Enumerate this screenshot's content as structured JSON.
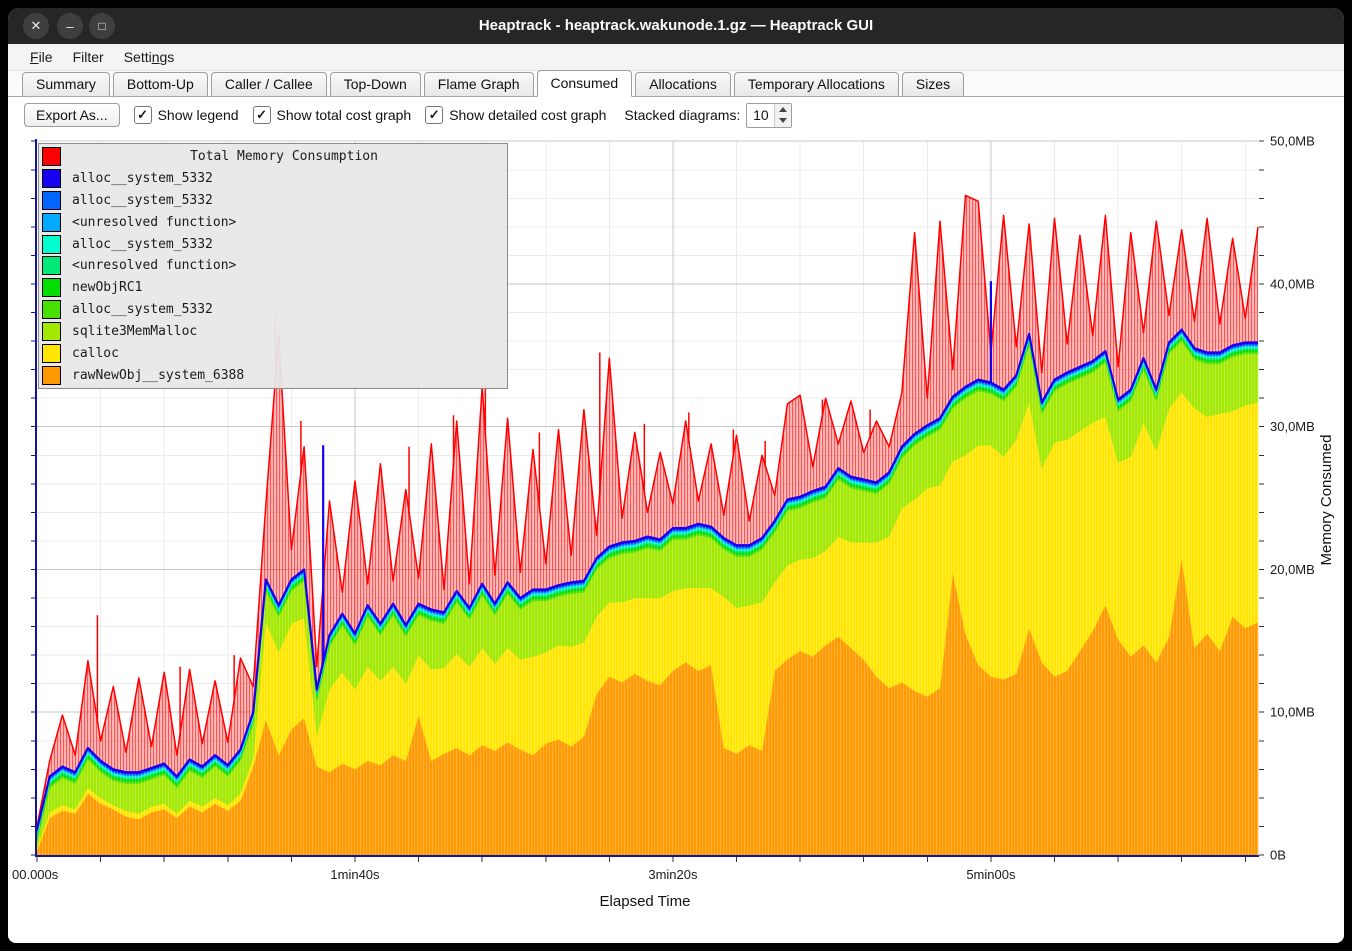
{
  "window": {
    "title": "Heaptrack - heaptrack.wakunode.1.gz — Heaptrack GUI",
    "controls": {
      "close_icon": "✕",
      "minimize_icon": "–",
      "maximize_icon": "□"
    }
  },
  "menu": {
    "file": {
      "pre": "",
      "key": "F",
      "post": "ile"
    },
    "filter": {
      "label": "Filter"
    },
    "settings": {
      "pre": "Setti",
      "key": "n",
      "post": "gs"
    }
  },
  "tabs": [
    {
      "label": "Summary",
      "active": false
    },
    {
      "label": "Bottom-Up",
      "active": false
    },
    {
      "label": "Caller / Callee",
      "active": false
    },
    {
      "label": "Top-Down",
      "active": false
    },
    {
      "label": "Flame Graph",
      "active": false
    },
    {
      "label": "Consumed",
      "active": true
    },
    {
      "label": "Allocations",
      "active": false
    },
    {
      "label": "Temporary Allocations",
      "active": false
    },
    {
      "label": "Sizes",
      "active": false
    }
  ],
  "toolbar": {
    "export_label": "Export As...",
    "check_glyph": "✓",
    "checkboxes": [
      {
        "label": "Show legend",
        "checked": true
      },
      {
        "label": "Show total cost graph",
        "checked": true
      },
      {
        "label": "Show detailed cost graph",
        "checked": true
      }
    ],
    "stacked_label": "Stacked diagrams:",
    "stacked_value": "10"
  },
  "legend": {
    "rows": [
      {
        "color": "#ff0000",
        "label": "Total Memory Consumption",
        "is_title": true
      },
      {
        "color": "#1500ef",
        "label": "alloc__system_5332"
      },
      {
        "color": "#0066ff",
        "label": "alloc__system_5332"
      },
      {
        "color": "#00aaff",
        "label": "<unresolved function>"
      },
      {
        "color": "#00ffd0",
        "label": "alloc__system_5332"
      },
      {
        "color": "#00e878",
        "label": "<unresolved function>"
      },
      {
        "color": "#00dd00",
        "label": "newObjRC1"
      },
      {
        "color": "#47e000",
        "label": "alloc__system_5332"
      },
      {
        "color": "#a2e800",
        "label": "sqlite3MemMalloc"
      },
      {
        "color": "#ffe600",
        "label": "calloc"
      },
      {
        "color": "#ff9900",
        "label": "rawNewObj__system_6388"
      }
    ]
  },
  "chart_data": {
    "type": "area",
    "title": "Total Memory Consumption",
    "xlabel": "Elapsed Time",
    "ylabel": "Memory Consumed",
    "xlim_s": [
      0,
      384
    ],
    "ylim_mb": [
      0,
      50
    ],
    "grid": {
      "x_minor_s": 20,
      "x_major_s": 100,
      "y_minor_mb": 2,
      "y_major_mb": 10
    },
    "legend_position": "top-left",
    "x_ticks": [
      {
        "t": 0,
        "label": "00.000s"
      },
      {
        "t": 100,
        "label": "1min40s"
      },
      {
        "t": 200,
        "label": "3min20s"
      },
      {
        "t": 300,
        "label": "5min00s"
      }
    ],
    "y_ticks": [
      {
        "mb": 0,
        "label": "0B"
      },
      {
        "mb": 10,
        "label": "10,0MB"
      },
      {
        "mb": 20,
        "label": "20,0MB"
      },
      {
        "mb": 30,
        "label": "30,0MB"
      },
      {
        "mb": 40,
        "label": "40,0MB"
      },
      {
        "mb": 50,
        "label": "50,0MB"
      }
    ],
    "t": [
      0,
      4,
      8,
      12,
      16,
      20,
      24,
      28,
      32,
      36,
      40,
      44,
      48,
      52,
      56,
      60,
      64,
      68,
      72,
      76,
      80,
      84,
      88,
      92,
      96,
      100,
      104,
      108,
      112,
      116,
      120,
      124,
      128,
      132,
      136,
      140,
      144,
      148,
      152,
      156,
      160,
      164,
      168,
      172,
      176,
      180,
      184,
      188,
      192,
      196,
      200,
      204,
      208,
      212,
      216,
      220,
      224,
      228,
      232,
      236,
      240,
      244,
      248,
      252,
      256,
      260,
      264,
      268,
      272,
      276,
      280,
      284,
      288,
      292,
      296,
      300,
      304,
      308,
      312,
      316,
      320,
      324,
      328,
      332,
      336,
      340,
      344,
      348,
      352,
      356,
      360,
      364,
      368,
      372,
      376,
      380,
      384
    ],
    "series": [
      {
        "name": "rawNewObj__system_6388",
        "color": "#ff9900",
        "values": [
          0.3,
          2.6,
          3.1,
          2.9,
          4.3,
          3.6,
          3.2,
          2.7,
          2.5,
          3.0,
          3.2,
          2.6,
          3.4,
          3.0,
          3.6,
          3.1,
          3.8,
          6.2,
          9.5,
          7.0,
          8.8,
          9.6,
          6.2,
          5.8,
          6.4,
          6.0,
          6.6,
          6.3,
          7.0,
          6.6,
          9.8,
          6.6,
          7.1,
          7.5,
          7.0,
          7.7,
          7.3,
          7.9,
          7.4,
          7.0,
          7.8,
          8.1,
          7.6,
          8.3,
          11.3,
          12.5,
          12.1,
          12.7,
          12.2,
          11.9,
          12.9,
          13.5,
          12.9,
          13.3,
          7.5,
          7.1,
          7.7,
          7.3,
          12.9,
          13.7,
          14.3,
          13.9,
          14.7,
          15.3,
          14.5,
          13.7,
          12.5,
          11.7,
          12.1,
          11.5,
          11.1,
          11.7,
          19.8,
          15.5,
          13.3,
          12.5,
          12.3,
          12.7,
          15.9,
          13.5,
          12.5,
          12.9,
          14.3,
          15.7,
          17.5,
          15.1,
          13.9,
          14.7,
          13.5,
          15.3,
          20.8,
          14.5,
          15.5,
          14.3,
          16.7,
          15.9,
          16.3
        ]
      },
      {
        "name": "calloc",
        "color": "#ffe600",
        "values": [
          0.2,
          0.4,
          0.4,
          0.3,
          0.4,
          0.4,
          0.3,
          0.4,
          0.4,
          0.4,
          0.4,
          0.3,
          0.4,
          0.4,
          0.4,
          0.4,
          0.5,
          0.6,
          6.8,
          7.2,
          7.4,
          7.0,
          2.2,
          5.8,
          6.4,
          5.6,
          6.6,
          5.9,
          6.2,
          5.4,
          4.2,
          6.4,
          6.0,
          6.6,
          6.2,
          6.8,
          6.1,
          6.6,
          6.3,
          6.9,
          6.4,
          6.6,
          7.0,
          6.6,
          5.4,
          5.2,
          5.6,
          5.3,
          5.8,
          6.1,
          5.6,
          5.2,
          5.8,
          5.4,
          10.6,
          10.2,
          9.8,
          10.4,
          6.2,
          6.6,
          6.4,
          6.9,
          6.6,
          7.0,
          7.4,
          8.2,
          9.4,
          10.6,
          12.2,
          13.4,
          14.6,
          14.2,
          7.8,
          12.5,
          15.4,
          16.2,
          15.6,
          16.4,
          15.8,
          13.6,
          16.4,
          16.2,
          15.4,
          14.6,
          13.2,
          12.4,
          14.0,
          15.6,
          14.8,
          16.0,
          11.6,
          16.8,
          15.2,
          16.6,
          14.4,
          15.6,
          15.4
        ]
      },
      {
        "name": "sqlite3MemMalloc",
        "color": "#a2e800",
        "values": [
          0.5,
          1.7,
          1.9,
          1.8,
          2.0,
          1.8,
          1.7,
          1.9,
          2.1,
          1.9,
          2.0,
          1.8,
          2.1,
          2.0,
          2.2,
          2.0,
          2.3,
          2.4,
          2.2,
          2.5,
          2.3,
          2.6,
          2.4,
          3.0,
          3.3,
          3.1,
          3.5,
          3.2,
          3.6,
          3.3,
          2.8,
          3.4,
          3.1,
          3.6,
          3.3,
          3.7,
          3.4,
          3.8,
          3.5,
          3.9,
          3.6,
          3.4,
          3.7,
          3.5,
          3.3,
          3.1,
          3.4,
          3.2,
          3.5,
          3.3,
          3.6,
          3.4,
          3.7,
          3.5,
          3.3,
          3.6,
          3.4,
          3.7,
          3.5,
          3.8,
          3.6,
          3.9,
          3.7,
          4.0,
          3.8,
          3.6,
          3.4,
          3.7,
          3.5,
          3.8,
          3.6,
          3.9,
          3.7,
          4.0,
          3.8,
          3.6,
          3.9,
          3.7,
          4.0,
          3.8,
          3.6,
          3.9,
          3.7,
          3.5,
          3.8,
          3.6,
          3.9,
          3.7,
          3.5,
          3.8,
          3.6,
          3.4,
          3.7,
          3.5,
          3.8,
          3.6,
          3.4
        ]
      },
      {
        "name": "alloc__system_5332",
        "color": "#47e000",
        "const_mb": 0.14
      },
      {
        "name": "newObjRC1",
        "color": "#00dd00",
        "const_mb": 0.16
      },
      {
        "name": "<unresolved function>",
        "color": "#00e878",
        "const_mb": 0.12
      },
      {
        "name": "alloc__system_5332",
        "color": "#00ffd0",
        "const_mb": 0.1
      },
      {
        "name": "<unresolved function>",
        "color": "#00aaff",
        "const_mb": 0.08
      },
      {
        "name": "alloc__system_5332",
        "color": "#0066ff",
        "const_mb": 0.08
      },
      {
        "name": "alloc__system_5332",
        "color": "#1500ef",
        "const_mb": 0.12
      }
    ],
    "total": {
      "name": "Total Memory Consumption",
      "color": "#ff0000",
      "values": [
        2.0,
        6.6,
        9.8,
        7.0,
        13.6,
        8.0,
        11.8,
        7.2,
        12.4,
        7.6,
        12.8,
        7.0,
        13.0,
        7.8,
        12.2,
        7.9,
        13.8,
        11.8,
        24.6,
        36.4,
        21.4,
        28.6,
        13.2,
        24.8,
        18.4,
        26.2,
        19.0,
        27.4,
        19.2,
        25.6,
        19.4,
        28.8,
        18.6,
        30.4,
        19.0,
        32.8,
        19.6,
        30.6,
        19.8,
        28.4,
        20.4,
        29.8,
        21.0,
        31.2,
        22.4,
        34.8,
        23.6,
        29.6,
        24.0,
        28.2,
        24.6,
        30.4,
        24.8,
        28.8,
        23.8,
        29.4,
        23.4,
        28.0,
        25.2,
        31.6,
        32.2,
        27.2,
        32.0,
        28.8,
        31.8,
        28.2,
        30.4,
        28.6,
        32.4,
        43.6,
        32.0,
        44.4,
        34.0,
        46.2,
        45.8,
        35.2,
        44.8,
        35.6,
        44.2,
        33.8,
        44.6,
        35.8,
        43.4,
        36.4,
        44.8,
        34.2,
        43.6,
        36.6,
        44.4,
        37.8,
        43.8,
        37.4,
        44.6,
        37.2,
        43.2,
        37.6,
        44.0
      ]
    },
    "red_spikes": [
      [
        19,
        16.8
      ],
      [
        45,
        13.2
      ],
      [
        62,
        14.0
      ],
      [
        75,
        37.7
      ],
      [
        83,
        30.4
      ],
      [
        117,
        28.6
      ],
      [
        131,
        30.8
      ],
      [
        141,
        33.2
      ],
      [
        158,
        29.6
      ],
      [
        177,
        35.2
      ],
      [
        191,
        30.2
      ],
      [
        205,
        31.0
      ],
      [
        219,
        29.8
      ],
      [
        229,
        29.0
      ],
      [
        247,
        31.9
      ],
      [
        262,
        31.2
      ]
    ],
    "blue_spikes": [
      [
        90,
        28.7
      ],
      [
        300,
        40.2
      ]
    ]
  }
}
